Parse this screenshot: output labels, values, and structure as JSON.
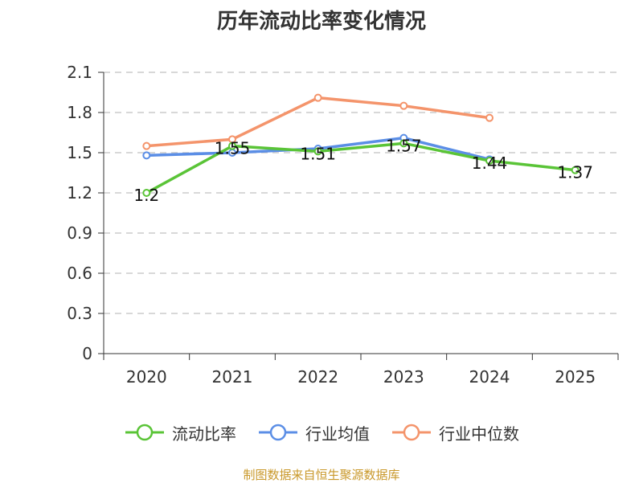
{
  "chart_data": {
    "type": "line",
    "title": "历年流动比率变化情况",
    "categories": [
      "2020",
      "2021",
      "2022",
      "2023",
      "2024",
      "2025"
    ],
    "yticks": [
      "0",
      "0.3",
      "0.6",
      "0.9",
      "1.2",
      "1.5",
      "1.8",
      "2.1"
    ],
    "ylim": [
      0,
      2.1
    ],
    "grid": true,
    "legend_position": "bottom",
    "series": [
      {
        "name": "流动比率",
        "color": "#5ac437",
        "values": [
          1.2,
          1.55,
          1.51,
          1.57,
          1.44,
          1.37
        ],
        "labels": [
          "1.2",
          "1.55",
          "1.51",
          "1.57",
          "1.44",
          "1.37"
        ]
      },
      {
        "name": "行业均值",
        "color": "#5b8ee6",
        "values": [
          1.48,
          1.5,
          1.53,
          1.61,
          1.45,
          null
        ]
      },
      {
        "name": "行业中位数",
        "color": "#f4946b",
        "values": [
          1.55,
          1.6,
          1.91,
          1.85,
          1.76,
          null
        ]
      }
    ]
  },
  "source": "制图数据来自恒生聚源数据库"
}
